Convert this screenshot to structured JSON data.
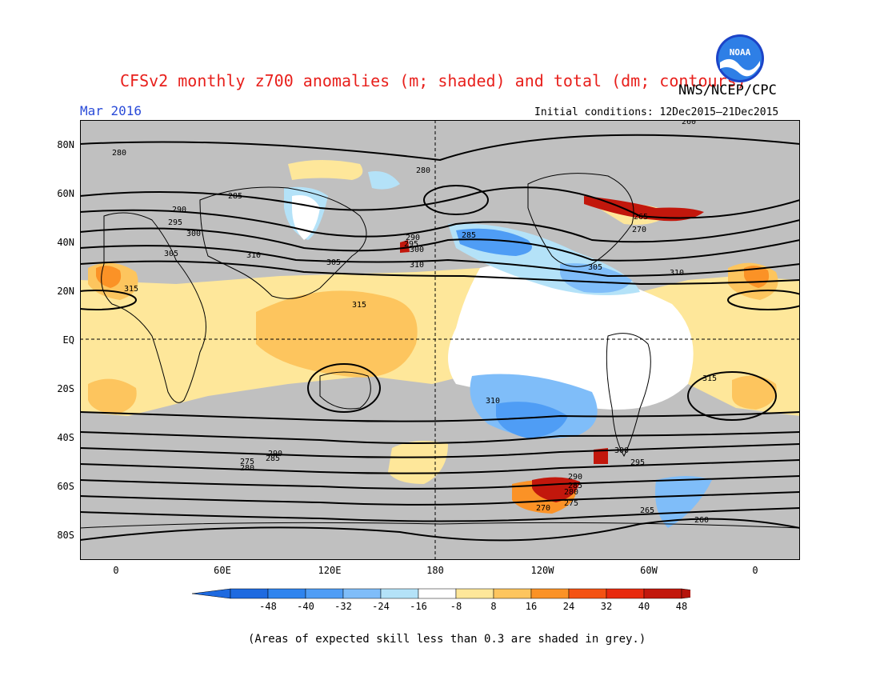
{
  "header": {
    "title": "CFSv2 monthly z700 anomalies (m; shaded) and total (dm; contours)",
    "agency": "NWS/NCEP/CPC",
    "month": "Mar 2016",
    "initial_conditions": "Initial conditions: 12Dec2015–21Dec2015",
    "logo_text": "NOAA"
  },
  "map": {
    "lat_labels": [
      "80N",
      "60N",
      "40N",
      "20N",
      "EQ",
      "20S",
      "40S",
      "60S",
      "80S"
    ],
    "lon_labels": [
      "0",
      "60E",
      "120E",
      "180",
      "120W",
      "60W",
      "0"
    ],
    "contour_labels": [
      "280",
      "285",
      "290",
      "295",
      "300",
      "305",
      "310",
      "315",
      "305",
      "310",
      "315",
      "290",
      "295",
      "300",
      "305",
      "310",
      "280",
      "285",
      "260",
      "265",
      "270",
      "275",
      "280",
      "285",
      "290",
      "295",
      "300",
      "310",
      "315",
      "260",
      "265",
      "270",
      "275",
      "280",
      "285",
      "290"
    ]
  },
  "colorbar": {
    "labels": [
      "-48",
      "-40",
      "-32",
      "-24",
      "-16",
      "-8",
      "8",
      "16",
      "24",
      "32",
      "40",
      "48"
    ],
    "colors": [
      "#1e6ae0",
      "#2f84ee",
      "#4f9df5",
      "#7fbdf9",
      "#b4e2f8",
      "#ffffff",
      "#fee79a",
      "#fdc55e",
      "#fb9226",
      "#f45212",
      "#e82a0e",
      "#c2170c"
    ],
    "neg_end_color": "#1e6ae0",
    "pos_end_color": "#b5140c"
  },
  "caption": "(Areas of expected skill less than 0.3 are shaded in grey.)",
  "colors": {
    "title": "#e8201c",
    "month": "#2a4bd8",
    "skill_grey": "#c0c0c0"
  }
}
